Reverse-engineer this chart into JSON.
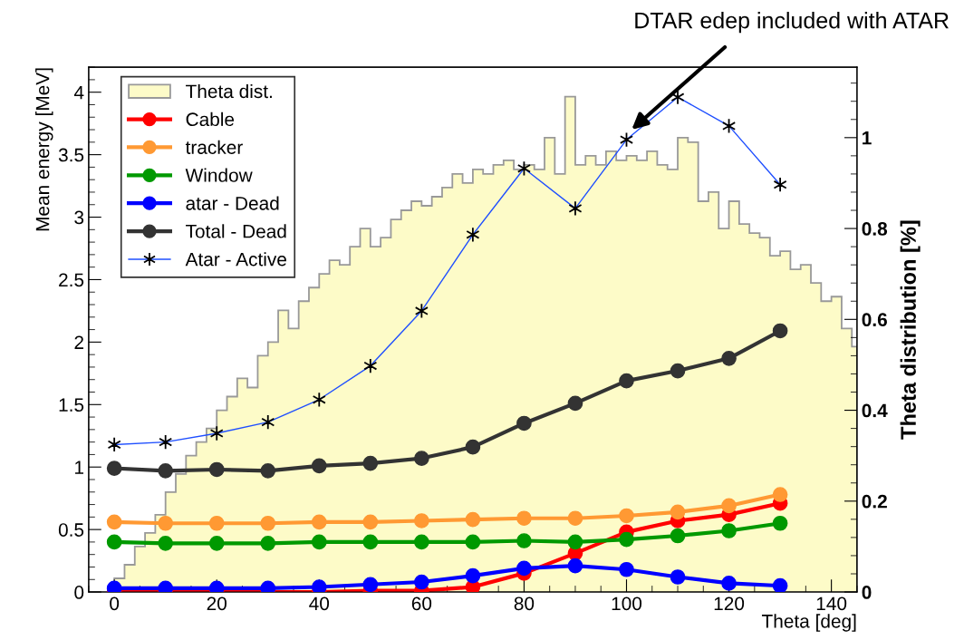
{
  "chart_data": {
    "type": "line",
    "xlabel": "Theta [deg]",
    "ylabel": "Mean energy [MeV]",
    "y2label": "Theta distribution [%]",
    "xlim": [
      -5,
      145
    ],
    "xticks": [
      0,
      20,
      40,
      60,
      80,
      100,
      120,
      140
    ],
    "ylim": [
      0,
      4.2
    ],
    "yticks": [
      0,
      0.5,
      1,
      1.5,
      2,
      2.5,
      3,
      3.5,
      4
    ],
    "y2lim": [
      0,
      1.155
    ],
    "y2ticks": [
      0,
      0.2,
      0.4,
      0.6,
      0.8,
      1
    ],
    "grid": false,
    "legend": "top left",
    "annotations": [
      {
        "text": "DTAR edep included with ATAR",
        "x": 101,
        "y": 3.7
      }
    ],
    "x": [
      0,
      10,
      20,
      30,
      40,
      50,
      60,
      70,
      80,
      90,
      100,
      110,
      120,
      130
    ],
    "series": [
      {
        "name": "Theta dist.",
        "type": "histogram",
        "axis": "y2",
        "color": "#fdfbc8",
        "bins": [
          0,
          2,
          4,
          6,
          8,
          10,
          12,
          14,
          16,
          18,
          20,
          22,
          24,
          26,
          28,
          30,
          32,
          34,
          36,
          38,
          40,
          42,
          44,
          46,
          48,
          50,
          52,
          54,
          56,
          58,
          60,
          62,
          64,
          66,
          68,
          70,
          72,
          74,
          76,
          78,
          80,
          82,
          84,
          86,
          88,
          90,
          92,
          94,
          96,
          98,
          100,
          102,
          104,
          106,
          108,
          110,
          112,
          114,
          116,
          118,
          120,
          122,
          124,
          126,
          128,
          130,
          132,
          134,
          136,
          138,
          140,
          142,
          144,
          145
        ],
        "values": [
          0.03,
          0.06,
          0.1,
          0.13,
          0.17,
          0.22,
          0.26,
          0.3,
          0.33,
          0.36,
          0.4,
          0.43,
          0.47,
          0.45,
          0.52,
          0.55,
          0.62,
          0.58,
          0.64,
          0.67,
          0.7,
          0.73,
          0.72,
          0.76,
          0.8,
          0.76,
          0.78,
          0.82,
          0.84,
          0.86,
          0.85,
          0.87,
          0.89,
          0.92,
          0.9,
          0.93,
          0.92,
          0.94,
          0.95,
          0.93,
          0.94,
          0.93,
          1.0,
          0.92,
          1.09,
          0.94,
          0.96,
          0.94,
          0.97,
          0.95,
          0.96,
          0.95,
          0.97,
          0.94,
          0.93,
          1.0,
          0.99,
          0.86,
          0.88,
          0.8,
          0.86,
          0.81,
          0.79,
          0.78,
          0.74,
          0.75,
          0.71,
          0.72,
          0.68,
          0.64,
          0.65,
          0.58,
          0.54
        ]
      },
      {
        "name": "Cable",
        "color": "#ff0000",
        "marker": "circle",
        "values": [
          0,
          0,
          0,
          0,
          0,
          0.01,
          0.01,
          0.04,
          0.15,
          0.31,
          0.48,
          0.57,
          0.62,
          0.71
        ]
      },
      {
        "name": "tracker",
        "color": "#ff9933",
        "marker": "circle",
        "values": [
          0.56,
          0.55,
          0.55,
          0.55,
          0.56,
          0.56,
          0.57,
          0.58,
          0.59,
          0.59,
          0.61,
          0.64,
          0.69,
          0.78
        ]
      },
      {
        "name": "Window",
        "color": "#009900",
        "marker": "circle",
        "values": [
          0.4,
          0.39,
          0.39,
          0.39,
          0.4,
          0.4,
          0.4,
          0.4,
          0.41,
          0.4,
          0.42,
          0.45,
          0.49,
          0.55
        ]
      },
      {
        "name": "atar - Dead",
        "color": "#0000ff",
        "marker": "circle",
        "values": [
          0.03,
          0.03,
          0.03,
          0.03,
          0.04,
          0.06,
          0.08,
          0.13,
          0.19,
          0.21,
          0.18,
          0.12,
          0.07,
          0.05
        ]
      },
      {
        "name": "Total - Dead",
        "color": "#333333",
        "marker": "circle",
        "values": [
          0.99,
          0.97,
          0.98,
          0.97,
          1.01,
          1.03,
          1.07,
          1.16,
          1.35,
          1.51,
          1.69,
          1.77,
          1.87,
          2.09
        ]
      },
      {
        "name": "Atar - Active",
        "color": "#1f4fff",
        "marker": "cross",
        "values": [
          1.18,
          1.2,
          1.27,
          1.36,
          1.54,
          1.81,
          2.25,
          2.86,
          3.39,
          3.07,
          3.62,
          3.96,
          3.73,
          3.26
        ]
      }
    ]
  }
}
